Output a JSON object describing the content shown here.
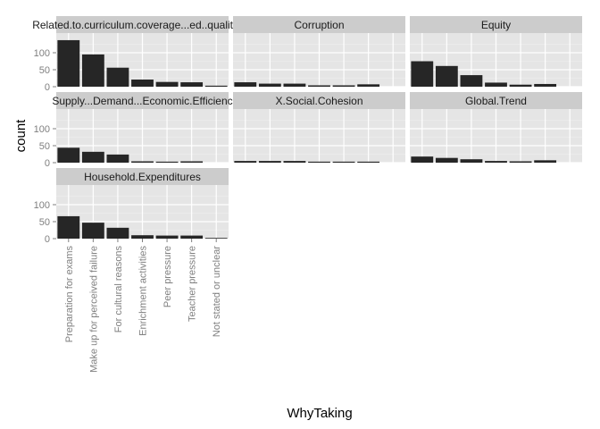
{
  "chart_data": {
    "type": "bar",
    "facet_layout": "wrap 3 columns",
    "xlabel": "WhyTaking",
    "ylabel": "count",
    "ylim": [
      0,
      150
    ],
    "yticks": [
      0,
      50,
      100
    ],
    "categories": [
      "Preparation for exams",
      "Make up for perceived failure",
      "For cultural reasons",
      "Enrichment activities",
      "Peer pressure",
      "Teacher pressure",
      "Not stated or unclear"
    ],
    "colors": {
      "bar": "#262626",
      "panel": "#e5e5e5",
      "strip": "#cccccc",
      "grid_major": "#ffffff",
      "grid_minor": "#f2f2f2"
    },
    "panels": [
      {
        "name": "Related.to.curriculum.coverage...ed..quality...e",
        "values": [
          137,
          95,
          56,
          21,
          14,
          13,
          3
        ]
      },
      {
        "name": "Corruption",
        "values": [
          13,
          9,
          9,
          4,
          4,
          7,
          0
        ]
      },
      {
        "name": "Equity",
        "values": [
          75,
          61,
          34,
          12,
          6,
          8,
          0
        ]
      },
      {
        "name": "Supply...Demand...Economic.Efficienc",
        "values": [
          44,
          32,
          24,
          4,
          3,
          4,
          0
        ]
      },
      {
        "name": "X.Social.Cohesion",
        "values": [
          5,
          5,
          5,
          3,
          3,
          3,
          0
        ]
      },
      {
        "name": "Global.Trend",
        "values": [
          18,
          14,
          10,
          5,
          4,
          7,
          0
        ]
      },
      {
        "name": "Household.Expenditures",
        "values": [
          66,
          47,
          32,
          10,
          9,
          9,
          2
        ]
      }
    ]
  }
}
